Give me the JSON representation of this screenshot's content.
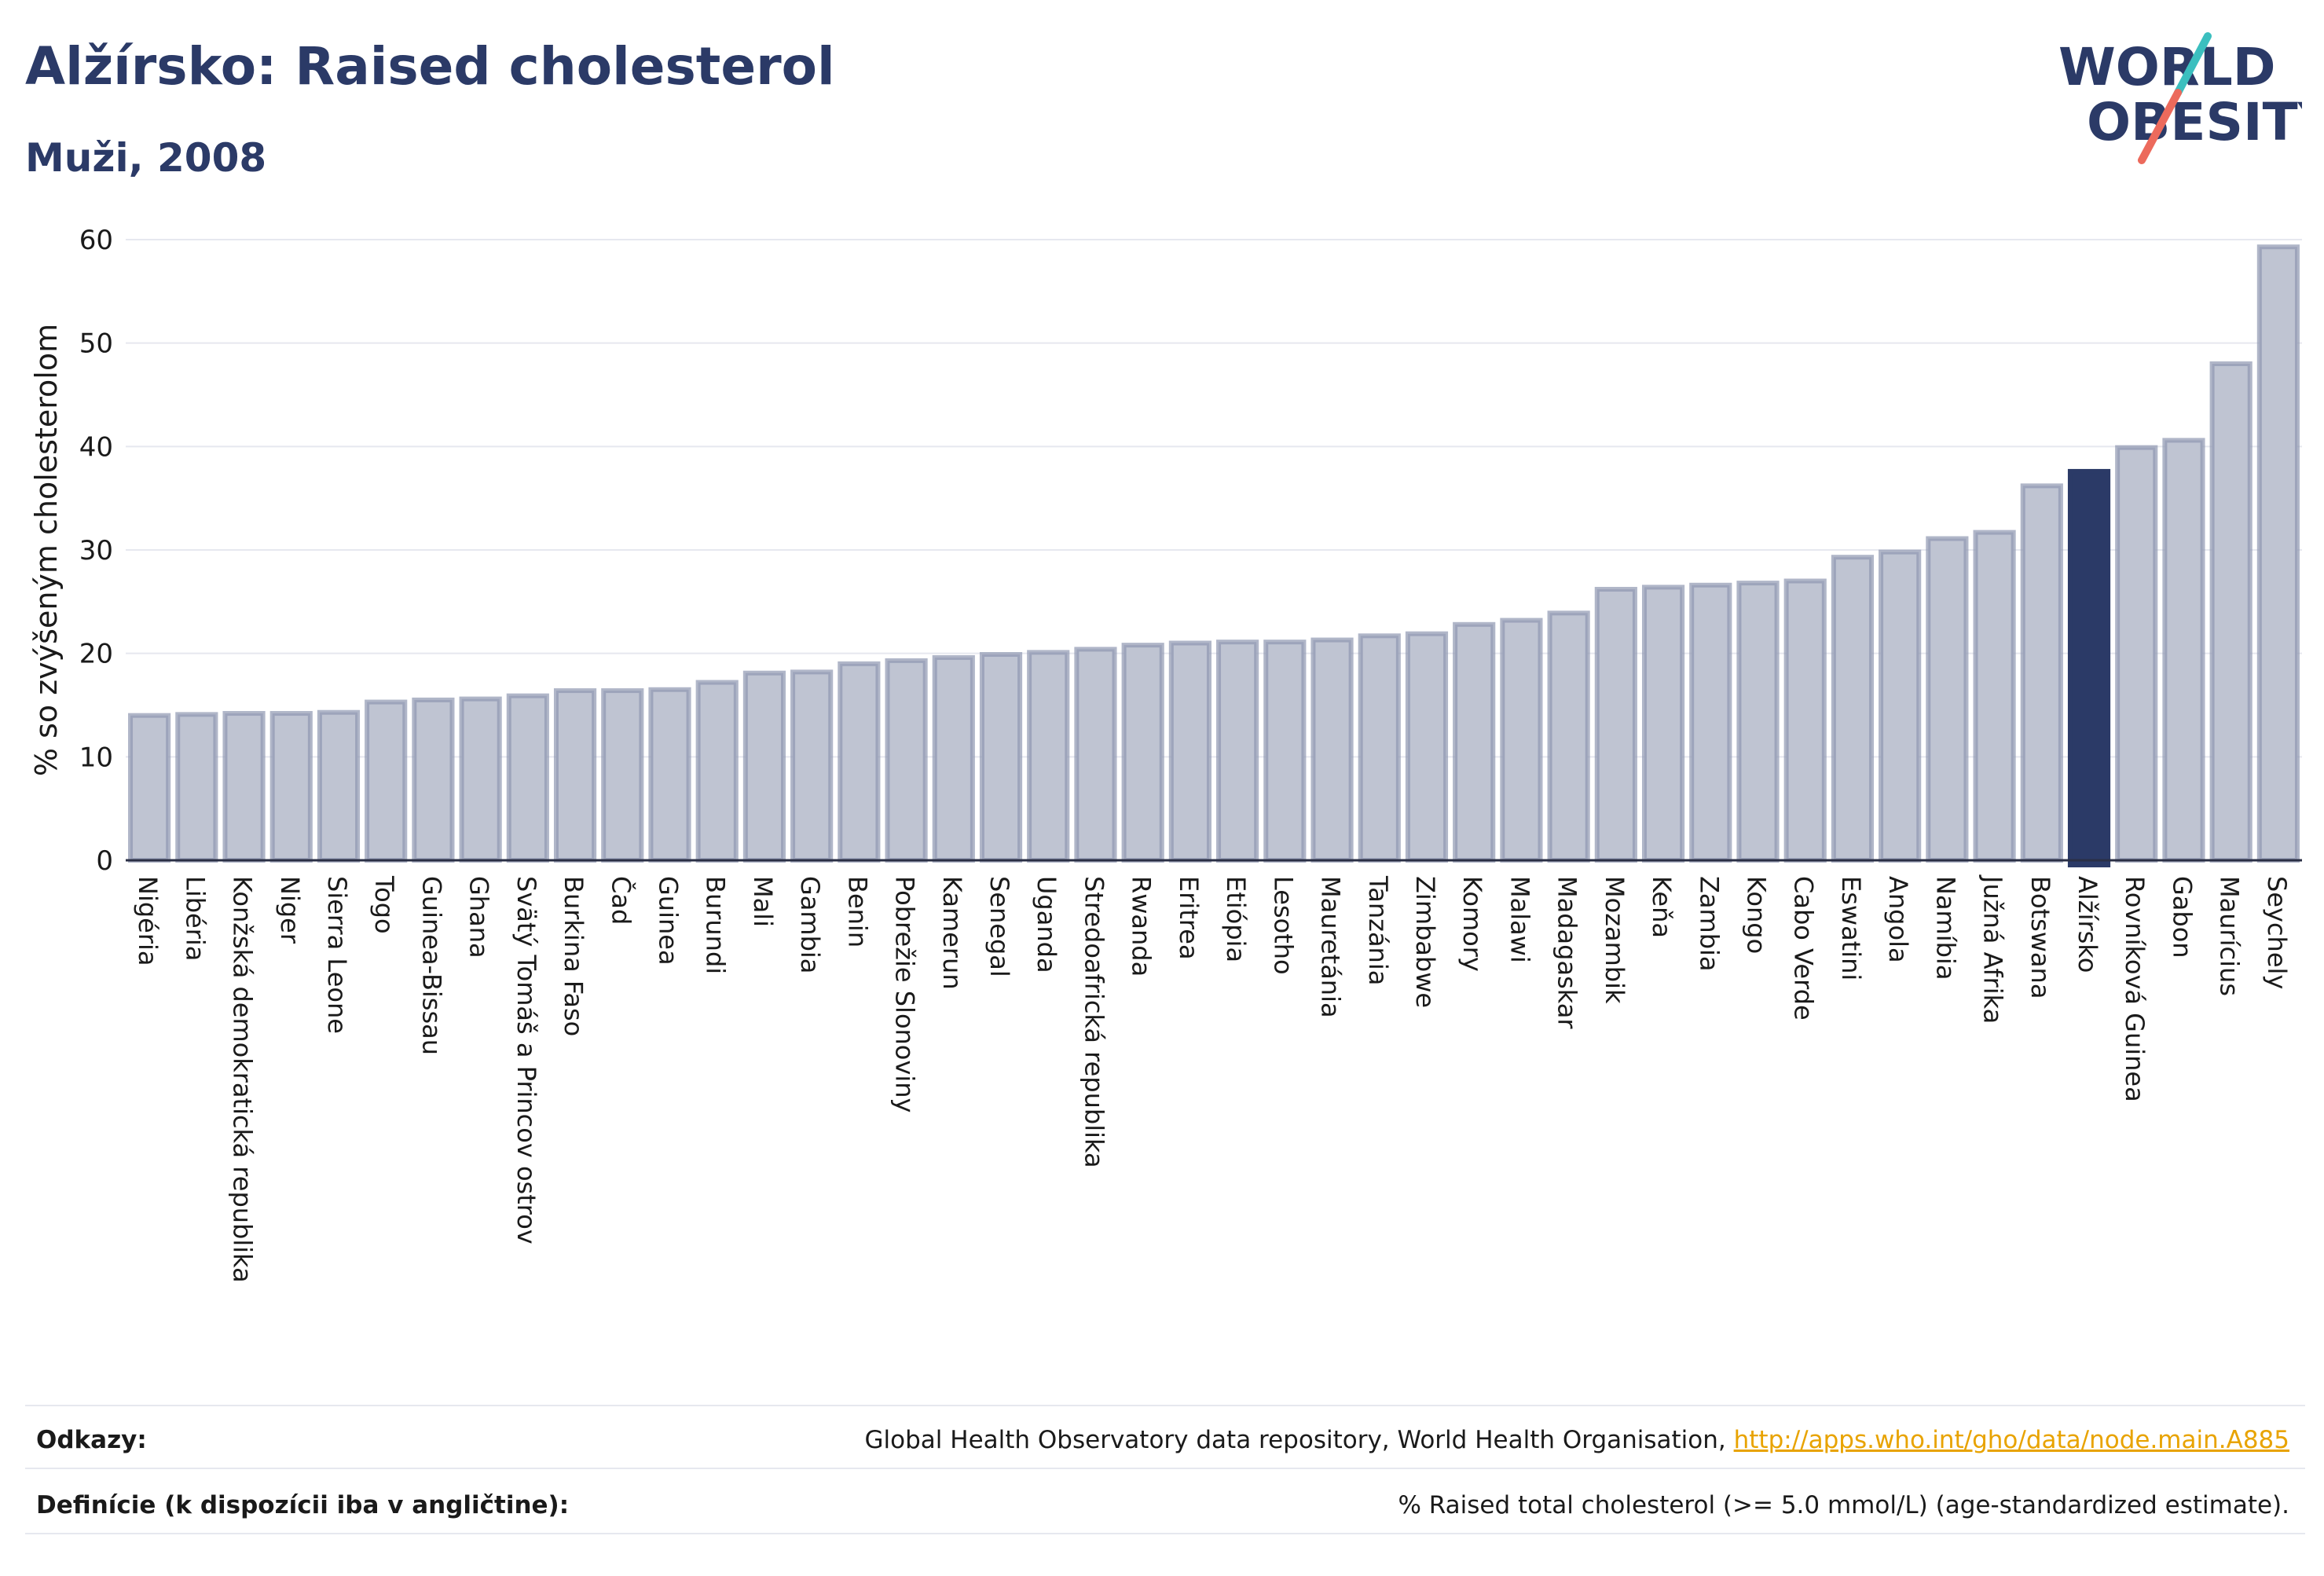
{
  "header": {
    "title": "Alžírsko: Raised cholesterol",
    "subtitle": "Muži, 2008"
  },
  "logo": {
    "line1": "WORLD",
    "line2": "OBESITY",
    "colors": {
      "text": "#2b3a67",
      "slash_teal": "#3bbfbf",
      "slash_coral": "#ec6a5c"
    }
  },
  "chart_data": {
    "type": "bar",
    "title": "Alžírsko: Raised cholesterol",
    "subtitle": "Muži, 2008",
    "xlabel": "",
    "ylabel": "% so zvýšeným cholesterolom",
    "ylim": [
      0,
      60
    ],
    "yticks": [
      0,
      10,
      20,
      30,
      40,
      50,
      60
    ],
    "grid": true,
    "highlight": "Alžírsko",
    "colors": {
      "bar": "#bfc4d2",
      "bar_edge": "#8f97b0",
      "highlight": "#2b3a67"
    },
    "categories": [
      "Nigéria",
      "Libéria",
      "Konžská demokratická republika",
      "Niger",
      "Sierra Leone",
      "Togo",
      "Guinea-Bissau",
      "Ghana",
      "Svätý Tomáš a Princov ostrov",
      "Burkina Faso",
      "Čad",
      "Guinea",
      "Burundi",
      "Mali",
      "Gambia",
      "Benin",
      "Pobrežie Slonoviny",
      "Kamerun",
      "Senegal",
      "Uganda",
      "Stredoafrická republika",
      "Rwanda",
      "Eritrea",
      "Etiópia",
      "Lesotho",
      "Mauretánia",
      "Tanzánia",
      "Zimbabwe",
      "Komory",
      "Malawi",
      "Madagaskar",
      "Mozambik",
      "Keňa",
      "Zambia",
      "Kongo",
      "Cabo Verde",
      "Eswatini",
      "Angola",
      "Namíbia",
      "Južná Afrika",
      "Botswana",
      "Alžírsko",
      "Rovníková Guinea",
      "Gabon",
      "Maurícius",
      "Seychely"
    ],
    "values": [
      14.0,
      14.1,
      14.2,
      14.2,
      14.3,
      15.3,
      15.5,
      15.6,
      15.9,
      16.4,
      16.4,
      16.5,
      17.2,
      18.1,
      18.2,
      19.0,
      19.3,
      19.6,
      19.9,
      20.1,
      20.4,
      20.8,
      21.0,
      21.1,
      21.1,
      21.3,
      21.7,
      21.9,
      22.8,
      23.2,
      23.9,
      26.2,
      26.4,
      26.6,
      26.8,
      27.0,
      29.3,
      29.8,
      31.1,
      31.7,
      36.2,
      37.6,
      39.9,
      40.6,
      48.0,
      59.3
    ]
  },
  "footer": {
    "sources_label": "Odkazy:",
    "sources_text": "Global Health Observatory data repository, World Health Organisation, ",
    "sources_link": "http://apps.who.int/gho/data/node.main.A885",
    "definitions_label": "Definície (k dispozícii iba v angličtine):",
    "definitions_text": "% Raised total cholesterol (>= 5.0 mmol/L) (age-standardized estimate)."
  }
}
